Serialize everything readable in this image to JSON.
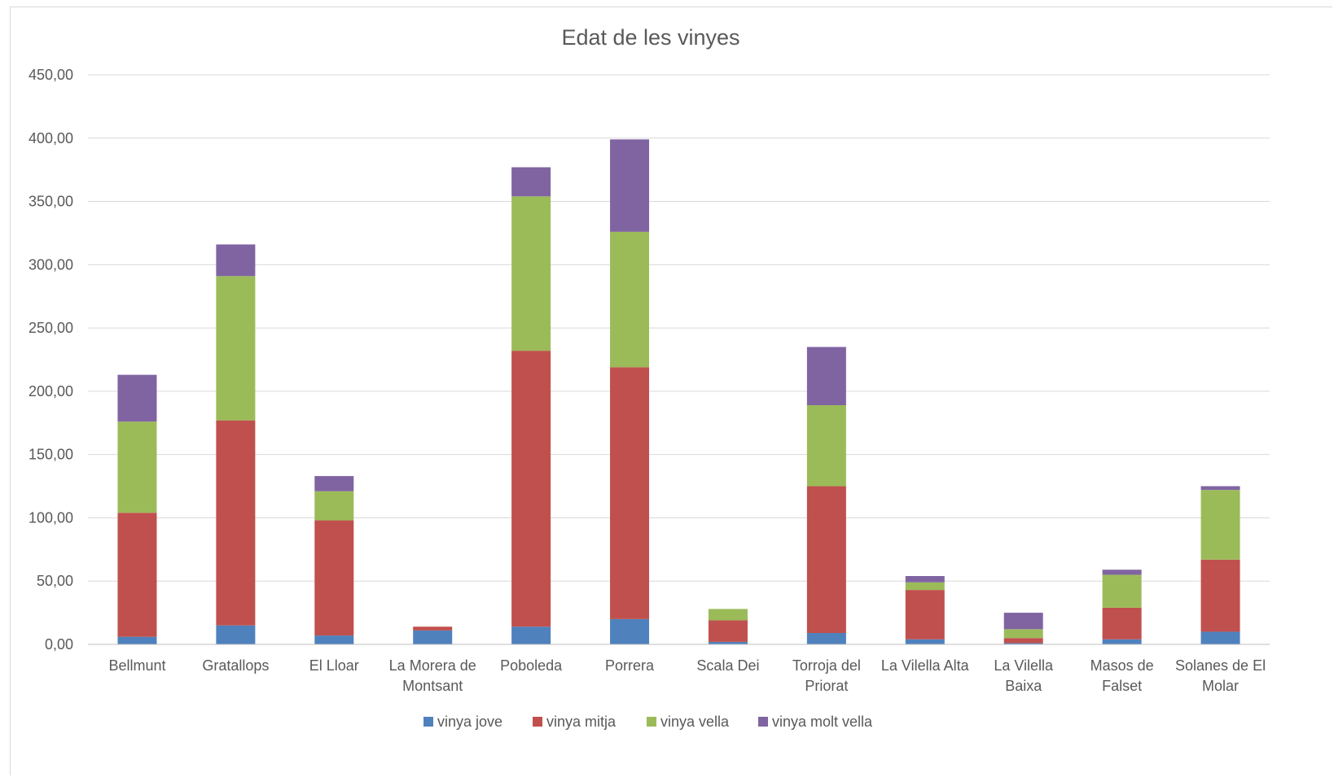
{
  "chart_data": {
    "type": "bar",
    "stacked": true,
    "title": "Edat de les vinyes",
    "xlabel": "",
    "ylabel": "",
    "ylim": [
      0,
      450
    ],
    "y_ticks": [
      "0,00",
      "50,00",
      "100,00",
      "150,00",
      "200,00",
      "250,00",
      "300,00",
      "350,00",
      "400,00",
      "450,00"
    ],
    "grid": true,
    "legend_position": "bottom",
    "categories": [
      [
        "Bellmunt"
      ],
      [
        "Gratallops"
      ],
      [
        "El Lloar"
      ],
      [
        "La Morera de",
        "Montsant"
      ],
      [
        "Poboleda"
      ],
      [
        "Porrera"
      ],
      [
        "Scala Dei"
      ],
      [
        "Torroja del",
        "Priorat"
      ],
      [
        "La Vilella Alta"
      ],
      [
        "La Vilella",
        "Baixa"
      ],
      [
        "Masos de",
        "Falset"
      ],
      [
        "Solanes de El",
        "Molar"
      ]
    ],
    "series": [
      {
        "name": "vinya jove",
        "color": "#4f81bd",
        "values": [
          6,
          15,
          7,
          11,
          14,
          20,
          2,
          9,
          4,
          1,
          4,
          10
        ]
      },
      {
        "name": "vinya mitja",
        "color": "#c0504d",
        "values": [
          98,
          162,
          91,
          3,
          218,
          199,
          17,
          116,
          39,
          4,
          25,
          57
        ]
      },
      {
        "name": "vinya vella",
        "color": "#9bbb59",
        "values": [
          72,
          114,
          23,
          0,
          122,
          107,
          9,
          64,
          6,
          7,
          26,
          55
        ]
      },
      {
        "name": "vinya molt vella",
        "color": "#8064a2",
        "values": [
          37,
          25,
          12,
          0,
          23,
          73,
          0,
          46,
          5,
          13,
          4,
          3
        ]
      }
    ]
  }
}
